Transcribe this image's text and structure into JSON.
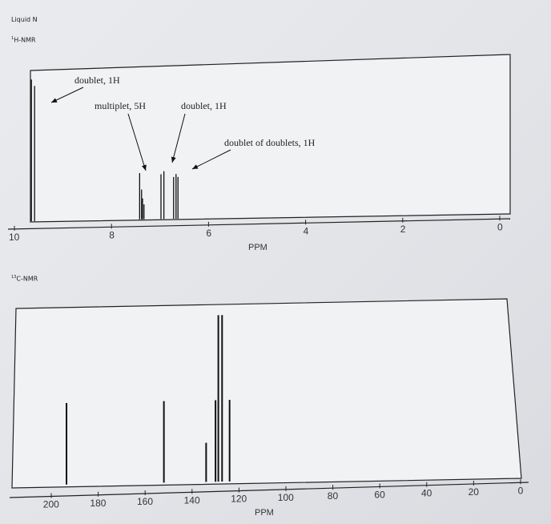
{
  "header": {
    "sample": "Liquid N",
    "h_sup": "1",
    "h_title": "H-NMR",
    "c_sup": "13",
    "c_title": "C-NMR"
  },
  "chart_data": [
    {
      "type": "line",
      "name": "1H-NMR spectrum",
      "xlabel": "PPM",
      "xlim": [
        10,
        0
      ],
      "xticks": [
        "10",
        "8",
        "6",
        "4",
        "2",
        "0"
      ],
      "peaks": [
        {
          "ppm": 9.65,
          "height": 0.95
        },
        {
          "ppm": 7.42,
          "height": 0.31
        },
        {
          "ppm": 7.38,
          "height": 0.2
        },
        {
          "ppm": 7.36,
          "height": 0.14
        },
        {
          "ppm": 7.33,
          "height": 0.1
        },
        {
          "ppm": 6.98,
          "height": 0.3
        },
        {
          "ppm": 6.92,
          "height": 0.32
        },
        {
          "ppm": 6.72,
          "height": 0.28
        },
        {
          "ppm": 6.67,
          "height": 0.3
        },
        {
          "ppm": 6.63,
          "height": 0.28
        }
      ],
      "annotations": [
        {
          "text": "doublet, 1H"
        },
        {
          "text": "multiplet, 5H"
        },
        {
          "text": "doublet, 1H"
        },
        {
          "text": "doublet of doublets, 1H"
        }
      ]
    },
    {
      "type": "bar",
      "name": "13C-NMR spectrum",
      "xlabel": "PPM",
      "xlim": [
        210,
        0
      ],
      "xticks": [
        "200",
        "180",
        "160",
        "140",
        "120",
        "100",
        "80",
        "60",
        "40",
        "20",
        "0"
      ],
      "peaks": [
        {
          "ppm": 193.5,
          "height": 0.48
        },
        {
          "ppm": 152.0,
          "height": 0.48
        },
        {
          "ppm": 134.0,
          "height": 0.23
        },
        {
          "ppm": 130.0,
          "height": 0.48
        },
        {
          "ppm": 128.8,
          "height": 0.98
        },
        {
          "ppm": 127.2,
          "height": 0.98
        },
        {
          "ppm": 124.0,
          "height": 0.48
        }
      ]
    }
  ]
}
